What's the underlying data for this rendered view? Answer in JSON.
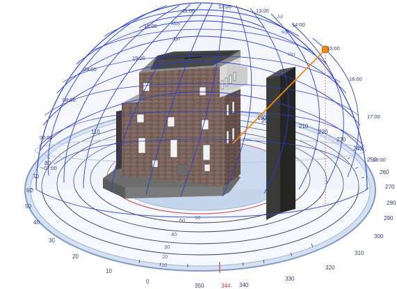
{
  "sun_path_diagram": {
    "hour_labels": {
      "h0600": "06:00",
      "h0700": "07:00",
      "h0800": "08:00",
      "h0900": "09:00",
      "h1000": "10:00",
      "h1100": "11:00",
      "h1200": "12:00",
      "h1300": "13:00",
      "h1400": "14:00",
      "h1500": "15:00",
      "h1600": "16:00",
      "h1700": "17:00",
      "h1800": "18:00",
      "h1900": "19:00"
    },
    "month_labels": {
      "jul": "Jul",
      "sep": "Sep",
      "oct": "Oct",
      "may": "May",
      "apr": "Apr"
    },
    "altitude_labels": {
      "a10": "10",
      "a20": "20",
      "a30": "30",
      "a40": "40",
      "a50": "50",
      "a60": "60"
    },
    "azimuth_labels": {
      "z0": "0",
      "z10": "10",
      "z20": "20",
      "z30": "30",
      "z40": "40",
      "z50": "50",
      "z60": "60",
      "z70": "70",
      "z80": "80",
      "z110": "110",
      "z190": "190",
      "z200": "200",
      "z210": "210",
      "z220": "220",
      "z230": "230",
      "z240": "240",
      "z250": "250",
      "z260": "260",
      "z270": "270",
      "z280": "280",
      "z290": "290",
      "z300": "300",
      "z310": "310",
      "z320": "320",
      "z330": "330",
      "z340": "340",
      "z344": "344",
      "z350": "350"
    },
    "current_sun": {
      "time": "15:00",
      "azimuth_deg": 344
    },
    "colors": {
      "dome_grid": "#2a3dd6",
      "sun_marker": "#f08a10",
      "sun_ray": "#f08a10",
      "highlight_ring": "#d23a3a",
      "ground_disc": "#c5d6ec",
      "brick": "#7a5e58"
    }
  }
}
